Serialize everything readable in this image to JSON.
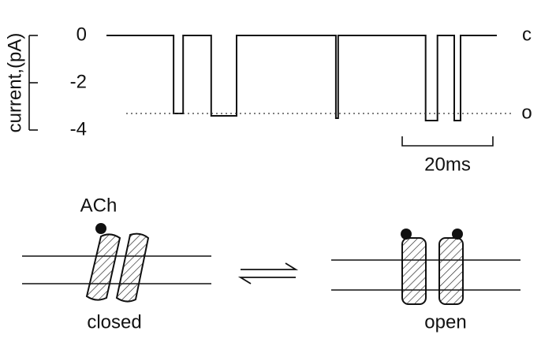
{
  "chart_data": {
    "type": "line",
    "ylabel": "current,(pA)",
    "x": [
      0,
      14.8,
      14.8,
      16.9,
      16.9,
      23.1,
      23.1,
      28.7,
      28.7,
      50.6,
      50.6,
      51.1,
      51.1,
      70.4,
      70.4,
      73,
      73,
      76.7,
      76.7,
      78.1,
      78.1,
      86.1
    ],
    "values": [
      0,
      0,
      -3.3,
      -3.3,
      0,
      0,
      -3.4,
      -3.4,
      0,
      0,
      -3.5,
      -3.5,
      0,
      0,
      -3.6,
      -3.6,
      0,
      0,
      -3.6,
      -3.6,
      0,
      0
    ],
    "color": "#111111",
    "xlim": [
      0,
      86.1
    ],
    "ylim": [
      -4,
      0
    ],
    "yticks": [
      0,
      -2,
      -4
    ],
    "state_labels": [
      {
        "label": "c",
        "value": 0
      },
      {
        "label": "o",
        "value": -3.3
      }
    ],
    "scale_bar": {
      "value": 20,
      "label": "20ms"
    }
  },
  "diagram": {
    "agonist": "ACh",
    "states": [
      "closed",
      "open"
    ]
  }
}
